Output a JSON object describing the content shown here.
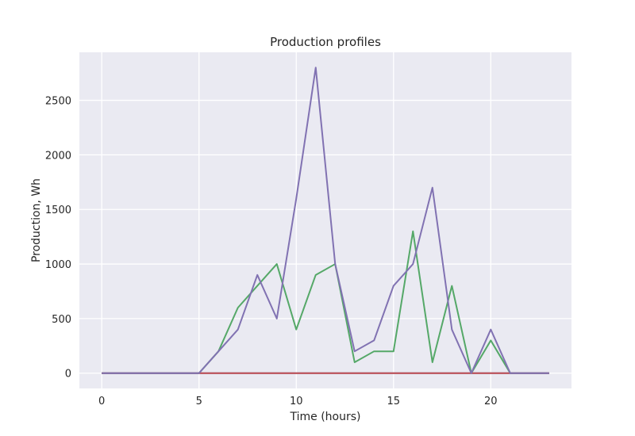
{
  "chart_data": {
    "type": "line",
    "title": "Production profiles",
    "xlabel": "Time (hours)",
    "ylabel": "Production, Wh",
    "xlim": [
      -1.15,
      24.15
    ],
    "ylim": [
      -140,
      2940
    ],
    "xticks": [
      0,
      5,
      10,
      15,
      20
    ],
    "yticks": [
      0,
      500,
      1000,
      1500,
      2000,
      2500
    ],
    "grid": true,
    "background": "#eaeaf2",
    "x": [
      0,
      1,
      2,
      3,
      4,
      5,
      6,
      7,
      8,
      9,
      10,
      11,
      12,
      13,
      14,
      15,
      16,
      17,
      18,
      19,
      20,
      21,
      22,
      23
    ],
    "series": [
      {
        "color": "#4c72b0",
        "values": [
          0,
          0,
          0,
          0,
          0,
          0,
          0,
          0,
          0,
          0,
          0,
          0,
          0,
          0,
          0,
          0,
          0,
          0,
          0,
          0,
          0,
          0,
          0,
          0
        ]
      },
      {
        "color": "#55a868",
        "values": [
          0,
          0,
          0,
          0,
          0,
          0,
          200,
          600,
          800,
          1000,
          400,
          900,
          1000,
          100,
          200,
          200,
          1300,
          100,
          800,
          0,
          300,
          0,
          0,
          0
        ]
      },
      {
        "color": "#c44e52",
        "values": [
          0,
          0,
          0,
          0,
          0,
          0,
          0,
          0,
          0,
          0,
          0,
          0,
          0,
          0,
          0,
          0,
          0,
          0,
          0,
          0,
          0,
          0,
          0,
          0
        ]
      },
      {
        "color": "#8172b2",
        "values": [
          0,
          0,
          0,
          0,
          0,
          0,
          200,
          400,
          900,
          500,
          1600,
          2800,
          1000,
          200,
          300,
          800,
          1000,
          1700,
          400,
          0,
          400,
          0,
          0,
          0
        ]
      }
    ]
  }
}
